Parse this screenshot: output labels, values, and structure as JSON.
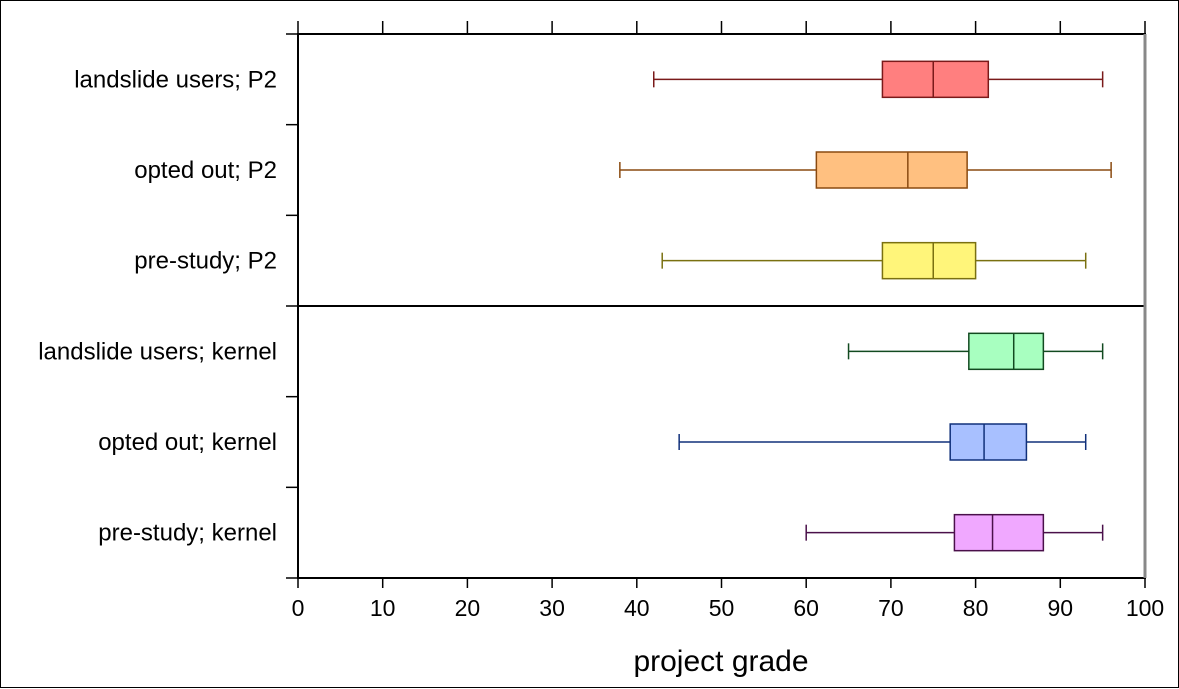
{
  "chart_data": {
    "type": "boxplot",
    "orientation": "horizontal",
    "title": "",
    "xlabel": "project grade",
    "ylabel": "",
    "xlim": [
      0,
      100
    ],
    "xticks": [
      0,
      10,
      20,
      30,
      40,
      50,
      60,
      70,
      80,
      90,
      100
    ],
    "xtick_labels": [
      "0",
      "10",
      "20",
      "30",
      "40",
      "50",
      "60",
      "70",
      "80",
      "90",
      "100"
    ],
    "grid": false,
    "groups": [
      {
        "label": "landslide users; P2",
        "min": 42,
        "q1": 69,
        "median": 75,
        "q3": 81.5,
        "max": 95,
        "fill": "#ff7f7f",
        "stroke": "#7a1a1a"
      },
      {
        "label": "opted out; P2",
        "min": 38,
        "q1": 61.2,
        "median": 72,
        "q3": 79,
        "max": 96,
        "fill": "#ffc080",
        "stroke": "#8a4a10"
      },
      {
        "label": "pre-study; P2",
        "min": 43,
        "q1": 69,
        "median": 75,
        "q3": 80,
        "max": 93,
        "fill": "#fff57a",
        "stroke": "#7a7010"
      },
      {
        "label": "landslide users; kernel",
        "min": 65,
        "q1": 79.2,
        "median": 84.5,
        "q3": 88,
        "max": 95,
        "fill": "#a8ffc0",
        "stroke": "#124a20"
      },
      {
        "label": "opted out; kernel",
        "min": 45,
        "q1": 77,
        "median": 81,
        "q3": 86,
        "max": 93,
        "fill": "#a8c0ff",
        "stroke": "#10307a"
      },
      {
        "label": "pre-study; kernel",
        "min": 60,
        "q1": 77.5,
        "median": 82,
        "q3": 88,
        "max": 95,
        "fill": "#f0a8ff",
        "stroke": "#4a104a"
      }
    ],
    "panels": [
      [
        0,
        1,
        2
      ],
      [
        3,
        4,
        5
      ]
    ]
  }
}
